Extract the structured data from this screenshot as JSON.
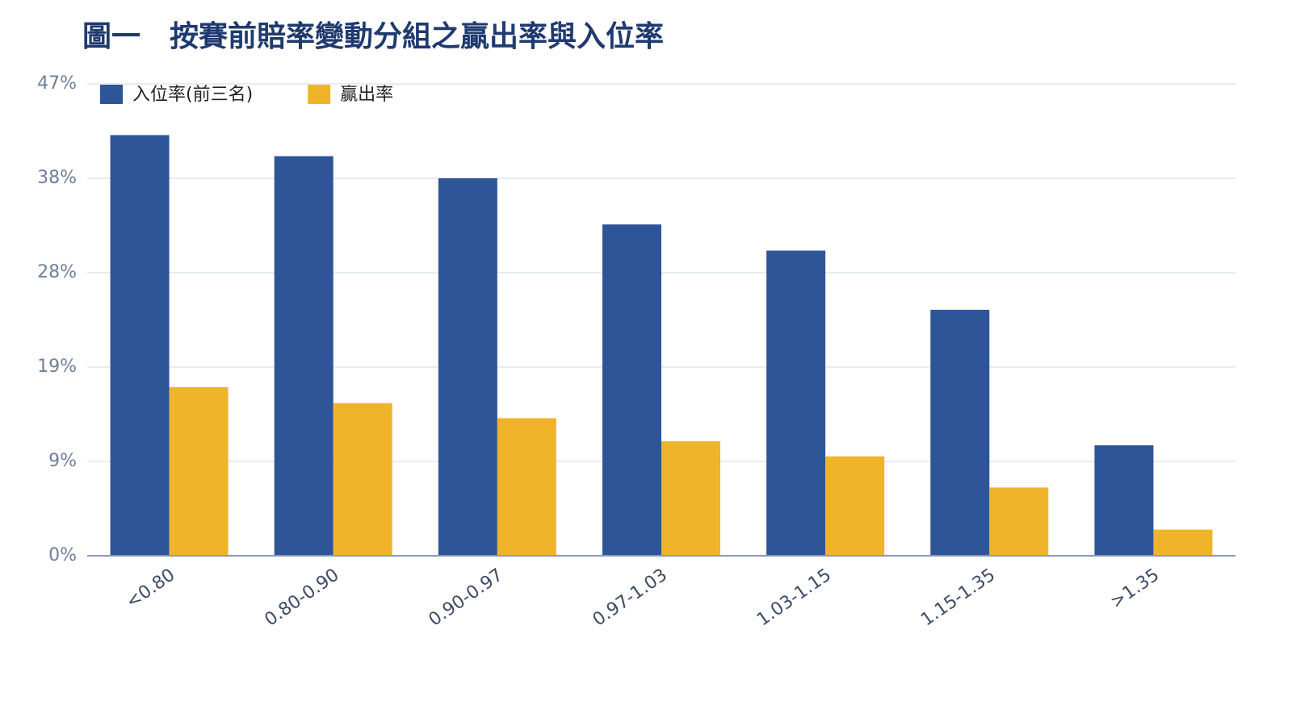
{
  "chart_data": {
    "type": "bar",
    "title": "圖一　按賽前賠率變動分組之贏出率與入位率",
    "categories": [
      "<0.80",
      "0.80-0.90",
      "0.90-0.97",
      "0.97-1.03",
      "1.03-1.15",
      "1.15-1.35",
      ">1.35"
    ],
    "series": [
      {
        "name": "入位率(前三名)",
        "color": "#2e5597",
        "values": [
          41.9,
          39.8,
          37.6,
          33.0,
          30.4,
          24.5,
          11.0
        ]
      },
      {
        "name": "贏出率",
        "color": "#efb42a",
        "values": [
          16.8,
          15.2,
          13.7,
          11.4,
          9.9,
          6.8,
          2.6
        ]
      }
    ],
    "ylim": [
      0,
      47
    ],
    "yticks": [
      {
        "value": 0,
        "label": "0%"
      },
      {
        "value": 9.4,
        "label": "9%"
      },
      {
        "value": 18.8,
        "label": "19%"
      },
      {
        "value": 28.2,
        "label": "28%"
      },
      {
        "value": 37.6,
        "label": "38%"
      },
      {
        "value": 47,
        "label": "47%"
      }
    ],
    "grid": true,
    "legend": "top-left"
  }
}
